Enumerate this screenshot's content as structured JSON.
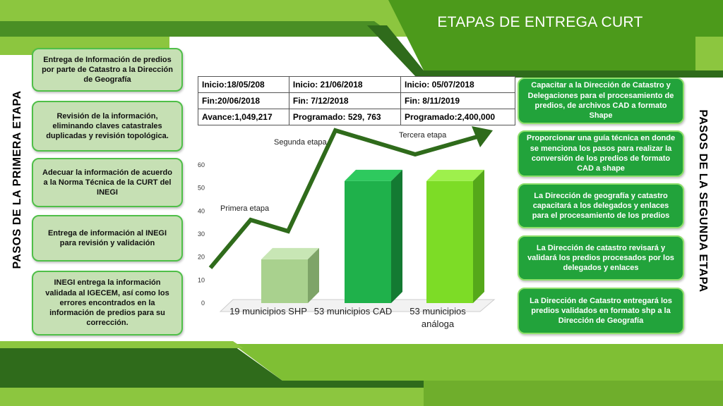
{
  "slide": {
    "title": "ETAPAS DE ENTREGA CURT",
    "left_heading": "PASOS DE LA PRIMERA ETAPA",
    "right_heading": "PASOS DE LA SEGUNDA ETAPA"
  },
  "left_steps": [
    "Entrega de Información de predios por parte de Catastro a la Dirección de Geografía",
    "Revisión de la información, eliminando claves catastrales duplicadas y revisión topológica.",
    "Adecuar la  información de acuerdo a la Norma Técnica de  la CURT del INEGI",
    "Entrega de información al INEGI para revisión y validación",
    "INEGI entrega  la información validada al IGECEM, así como los errores encontrados en la información de predios para su corrección."
  ],
  "right_steps": [
    "Capacitar a la Dirección de Catastro y Delegaciones para el procesamiento de predios, de archivos CAD  a formato Shape",
    "Proporcionar una guía técnica en donde se menciona los pasos para realizar la conversión de los predios de formato CAD  a shape",
    "La Dirección de  geografía y catastro capacitará a los delegados y enlaces para el procesamiento de los predios",
    "La Dirección de catastro revisará y validará los predios procesados por los delegados y enlaces",
    "La Dirección de Catastro entregará los predios validados en formato shp a la Dirección de  Geografía"
  ],
  "table": {
    "rows": [
      [
        "Inicio:18/05/208",
        "Inicio: 21/06/2018",
        "Inicio: 05/07/2018"
      ],
      [
        "Fin:20/06/2018",
        "Fin: 7/12/2018",
        "Fin: 8/11/2019"
      ],
      [
        "Avance:1,049,217",
        "Programado: 529, 763",
        "Programado:2,400,000"
      ]
    ]
  },
  "etapas": {
    "primera": "Primera etapa",
    "segunda": "Segunda etapa",
    "tercera": "Tercera etapa"
  },
  "chart_data": {
    "type": "bar",
    "categories": [
      "19 municipios SHP",
      "53 municipios CAD",
      "53 municipios análoga"
    ],
    "values": [
      19,
      53,
      53
    ],
    "ylim": [
      0,
      60
    ],
    "yticks": [
      0,
      10,
      20,
      30,
      40,
      50,
      60
    ],
    "colors": [
      "#a9d18e",
      "#1fb14b",
      "#7ddc26"
    ],
    "grid": false
  },
  "colors": {
    "green_dark": "#4c9a1b",
    "green_light": "#8dc73f",
    "arrow": "#2f6b1b"
  }
}
